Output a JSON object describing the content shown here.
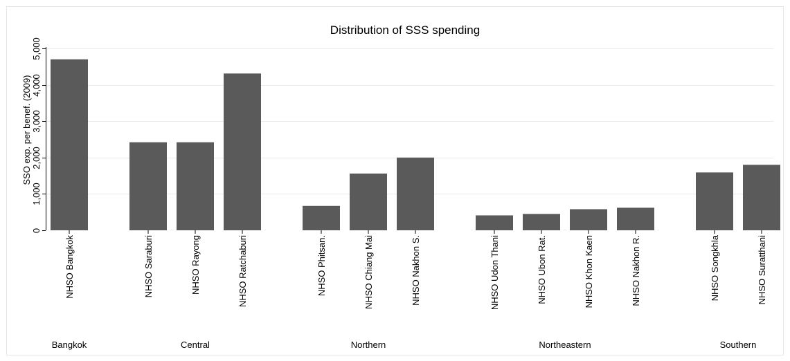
{
  "chart_data": {
    "type": "bar",
    "title": "Distribution of SSS spending",
    "ylabel": "SSO exp. per benef. (2009)",
    "xlabel": "",
    "ylim": [
      0,
      5000
    ],
    "yticks": [
      0,
      1000,
      2000,
      3000,
      4000,
      5000
    ],
    "ytick_labels": [
      "0",
      "1,000",
      "2,000",
      "3,000",
      "4,000",
      "5,000"
    ],
    "grid": true,
    "bar_color": "#5a5a5a",
    "groups": [
      {
        "label": "Bangkok",
        "bars": [
          {
            "category": "NHSO Bangkok",
            "value": 4700
          }
        ]
      },
      {
        "label": "Central",
        "bars": [
          {
            "category": "NHSO Saraburi",
            "value": 2420
          },
          {
            "category": "NHSO Rayong",
            "value": 2420
          },
          {
            "category": "NHSO Ratchaburi",
            "value": 4310
          }
        ]
      },
      {
        "label": "Northern",
        "bars": [
          {
            "category": "NHSO Phitsan.",
            "value": 670
          },
          {
            "category": "NHSO Chiang Mai",
            "value": 1560
          },
          {
            "category": "NHSO Nakhon S.",
            "value": 2000
          }
        ]
      },
      {
        "label": "Northeastern",
        "bars": [
          {
            "category": "NHSO Udon Thani",
            "value": 410
          },
          {
            "category": "NHSO Ubon Rat.",
            "value": 450
          },
          {
            "category": "NHSO Khon Kaen",
            "value": 580
          },
          {
            "category": "NHSO Nakhon R.",
            "value": 620
          }
        ]
      },
      {
        "label": "Southern",
        "bars": [
          {
            "category": "NHSO Songkhla",
            "value": 1590
          },
          {
            "category": "NHSO Suratthani",
            "value": 1800
          }
        ]
      }
    ]
  }
}
